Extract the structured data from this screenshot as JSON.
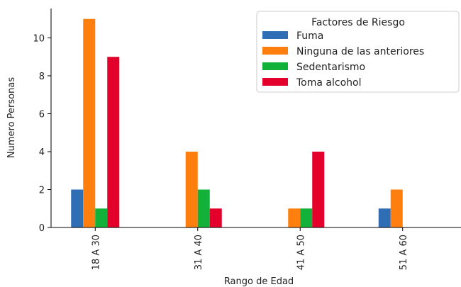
{
  "chart_data": {
    "type": "bar",
    "title": "",
    "xlabel": "Rango de Edad",
    "ylabel": "Numero Personas",
    "categories": [
      "18 A 30",
      "31 A 40",
      "41 A 50",
      "51 A 60"
    ],
    "ylim": [
      0,
      11.55
    ],
    "yticks": [
      0,
      2,
      4,
      6,
      8,
      10
    ],
    "legend_title": "Factores de Riesgo",
    "legend_position": "top-right",
    "grid": false,
    "series": [
      {
        "name": "Fuma",
        "color": "#2f6db5",
        "values": [
          2,
          0,
          0,
          1
        ]
      },
      {
        "name": "Ninguna de las anteriores",
        "color": "#ff7f0e",
        "values": [
          11,
          4,
          1,
          2
        ]
      },
      {
        "name": "Sedentarismo",
        "color": "#12b23a",
        "values": [
          1,
          2,
          1,
          0
        ]
      },
      {
        "name": "Toma alcohol",
        "color": "#e3002b",
        "values": [
          9,
          1,
          4,
          0
        ]
      }
    ]
  }
}
